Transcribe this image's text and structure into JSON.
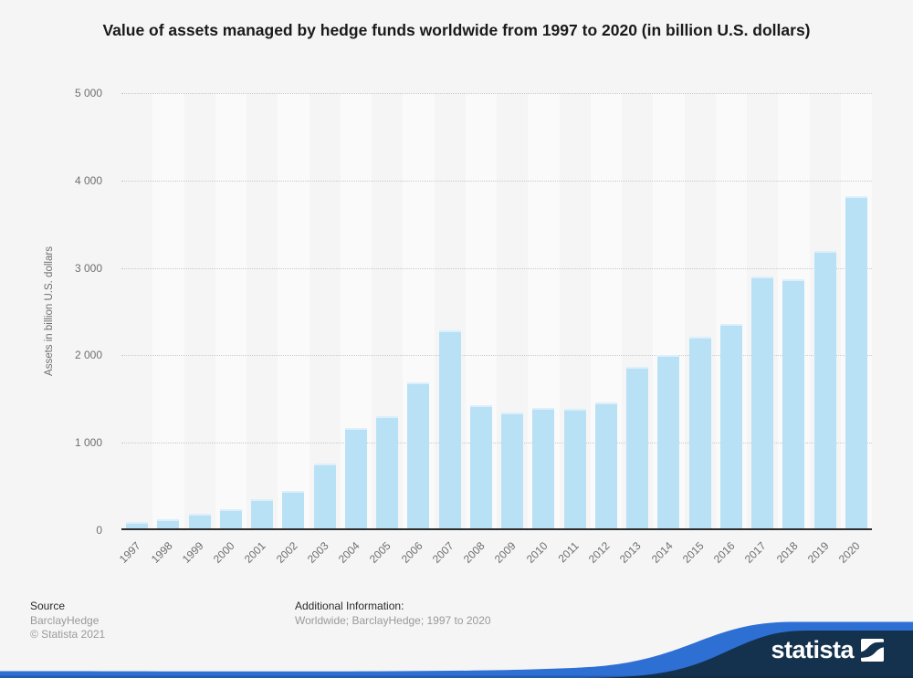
{
  "title": {
    "text": "Value of assets managed by hedge funds worldwide from 1997 to 2020 (in billion U.S. dollars)"
  },
  "chart_data": {
    "type": "bar",
    "title": "Value of assets managed by hedge funds worldwide from 1997 to 2020 (in billion U.S. dollars)",
    "categories": [
      "1997",
      "1998",
      "1999",
      "2000",
      "2001",
      "2002",
      "2003",
      "2004",
      "2005",
      "2006",
      "2007",
      "2008",
      "2009",
      "2010",
      "2011",
      "2012",
      "2013",
      "2014",
      "2015",
      "2016",
      "2017",
      "2018",
      "2019",
      "2020"
    ],
    "values": [
      95,
      125,
      185,
      245,
      360,
      450,
      760,
      1165,
      1310,
      1690,
      2285,
      1435,
      1350,
      1395,
      1390,
      1465,
      1870,
      2005,
      2210,
      2360,
      2905,
      2875,
      3190,
      3820
    ],
    "xlabel": "",
    "ylabel": "Assets in billion U.S. dollars",
    "ylim": [
      0,
      5000
    ],
    "y_ticks": [
      "5 000",
      "4 000",
      "3 000",
      "2 000",
      "1 000",
      "0"
    ],
    "grid": "horizontal-dotted",
    "legend": "none",
    "bar_color": "#b9e1f6"
  },
  "footer": {
    "source_label": "Source",
    "source_value": "BarclayHedge",
    "copyright": "© Statista 2021",
    "info_label": "Additional Information:",
    "info_value": "Worldwide; BarclayHedge; 1997 to 2020"
  },
  "branding": {
    "wordmark": "statista",
    "navy": "#14324d",
    "blue": "#2e6fd4"
  },
  "colors": {
    "page_background": "#f5f5f5",
    "alt_band": "#fafafa",
    "bar": "#b9e1f6",
    "gridline": "#c9c9c9",
    "axis_line": "#2d2d2d",
    "title_text": "#1a1a1a",
    "axis_text": "#6f6f6f",
    "footer_gray": "#9a9a9a"
  }
}
